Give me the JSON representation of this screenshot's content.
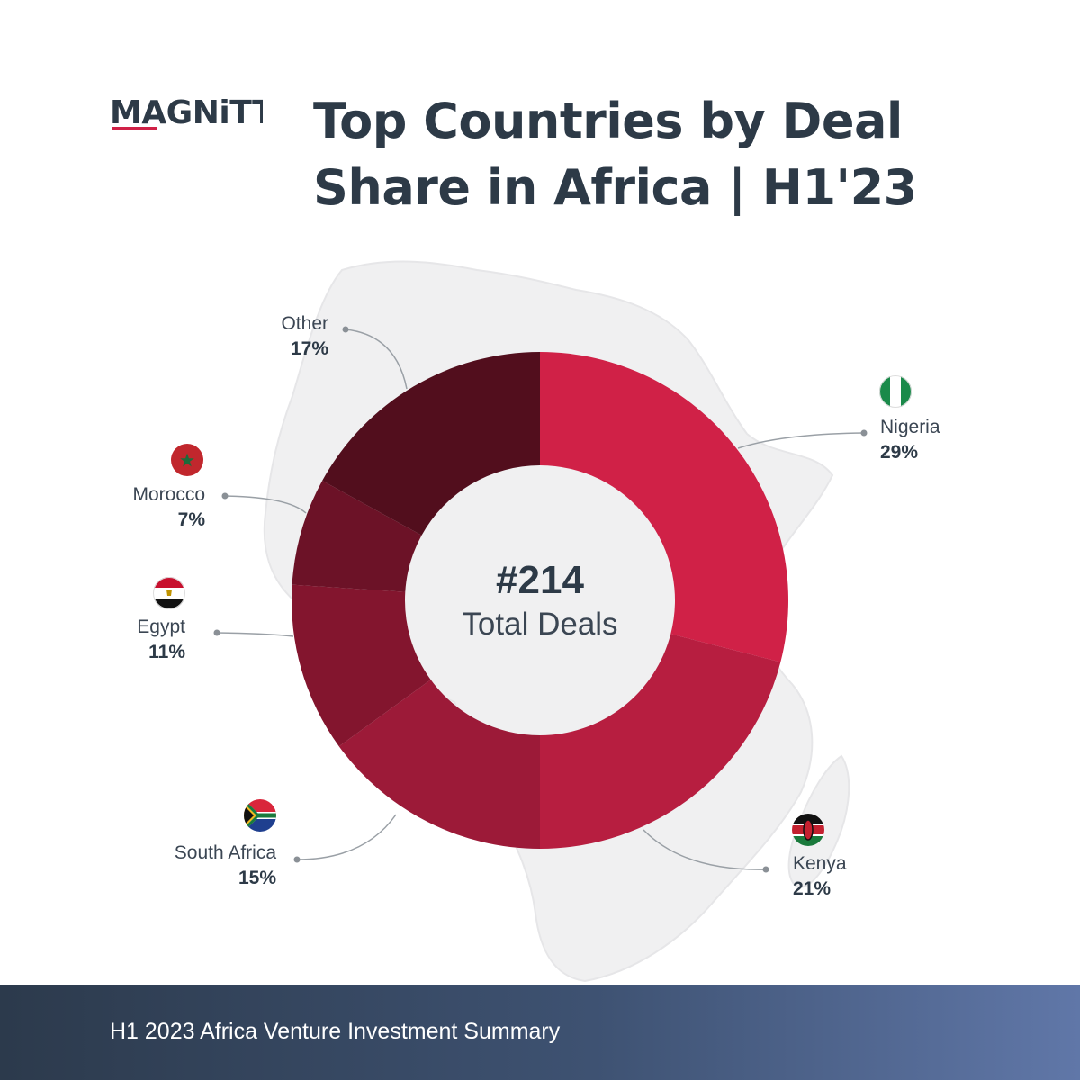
{
  "brand": {
    "logo_text": "MAGNiTT"
  },
  "title_lines": [
    "Top Countries by Deal",
    "Share in Africa | H1'23"
  ],
  "center": {
    "value": "#214",
    "label": "Total Deals"
  },
  "footer": {
    "text": "H1 2023 Africa Venture Investment Summary"
  },
  "colors": {
    "title": "#2d3a47",
    "slices": [
      "#d02147",
      "#b71e40",
      "#9c1a38",
      "#83152e",
      "#6c1227",
      "#520e1d"
    ]
  },
  "chart_data": {
    "type": "pie",
    "variant": "donut",
    "title": "Top Countries by Deal Share in Africa | H1'23",
    "total_deals": 214,
    "unit": "%",
    "categories": [
      "Nigeria",
      "Kenya",
      "South Africa",
      "Egypt",
      "Morocco",
      "Other"
    ],
    "values": [
      29,
      21,
      15,
      11,
      7,
      17
    ],
    "value_labels": [
      "29%",
      "21%",
      "15%",
      "11%",
      "7%",
      "17%"
    ],
    "flags": [
      "nigeria-flag",
      "kenya-flag",
      "south-africa-flag",
      "egypt-flag",
      "morocco-flag",
      null
    ]
  }
}
